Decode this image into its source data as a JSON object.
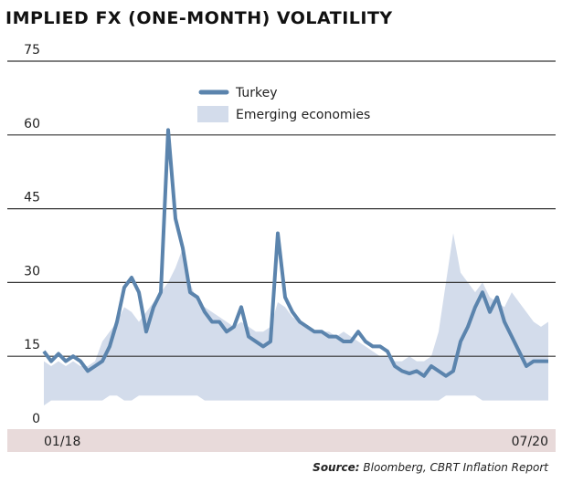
{
  "chart_data": {
    "type": "line",
    "title": "IMPLIED FX (ONE-MONTH) VOLATILITY",
    "source_label": "Source:",
    "source": "Bloomberg, CBRT Inflation Report",
    "categories": [
      "01/18",
      null,
      null,
      null,
      null,
      null,
      null,
      null,
      null,
      null,
      null,
      null,
      null,
      null,
      null,
      null,
      null,
      null,
      null,
      null,
      null,
      null,
      null,
      null,
      null,
      null,
      null,
      null,
      null,
      null,
      null,
      null,
      null,
      null,
      null,
      null,
      null,
      null,
      null,
      null,
      null,
      null,
      null,
      null,
      null,
      null,
      null,
      null,
      null,
      null,
      null,
      null,
      null,
      null,
      null,
      null,
      null,
      null,
      null,
      null,
      null,
      null,
      null,
      null,
      null,
      null,
      null,
      null,
      null,
      "07/20"
    ],
    "series": [
      {
        "name": "Turkey",
        "color": "#5b84ad",
        "values": [
          16,
          14,
          15.5,
          14,
          15,
          14,
          12,
          13,
          14,
          17,
          22,
          29,
          31,
          28,
          20,
          25,
          28,
          61,
          43,
          37,
          28,
          27,
          24,
          22,
          22,
          20,
          21,
          25,
          19,
          18,
          17,
          18,
          40,
          27,
          24,
          22,
          21,
          20,
          20,
          19,
          19,
          18,
          18,
          20,
          18,
          17,
          17,
          16,
          13,
          12,
          11.5,
          12,
          11,
          13,
          12,
          11,
          12,
          18,
          21,
          25,
          28,
          24,
          27,
          22,
          19,
          16,
          13,
          14,
          14,
          14
        ]
      },
      {
        "name": "Emerging economies",
        "color": "#d3dceb",
        "low": [
          5,
          6,
          6,
          6,
          6,
          6,
          6,
          6,
          6,
          7,
          7,
          6,
          6,
          7,
          7,
          7,
          7,
          7,
          7,
          7,
          7,
          7,
          6,
          6,
          6,
          6,
          6,
          6,
          6,
          6,
          6,
          6,
          6,
          6,
          6,
          6,
          6,
          6,
          6,
          6,
          6,
          6,
          6,
          6,
          6,
          6,
          6,
          6,
          6,
          6,
          6,
          6,
          6,
          6,
          6,
          7,
          7,
          7,
          7,
          7,
          6,
          6,
          6,
          6,
          6,
          6,
          6,
          6,
          6,
          6
        ],
        "high": [
          14,
          13,
          14,
          13,
          14,
          13,
          13,
          14,
          18,
          20,
          22,
          25,
          24,
          22,
          24,
          26,
          28,
          30,
          33,
          37,
          30,
          26,
          25,
          24,
          23,
          22,
          21,
          22,
          21,
          20,
          20,
          21,
          26,
          25,
          23,
          22,
          21,
          20,
          20,
          20,
          19,
          20,
          19,
          18,
          17,
          16,
          15,
          15,
          14,
          14,
          15,
          14,
          14,
          15,
          20,
          30,
          40,
          32,
          30,
          28,
          30,
          27,
          26,
          25,
          28,
          26,
          24,
          22,
          21,
          22
        ]
      }
    ],
    "ylim": [
      0,
      75
    ],
    "yticks": [
      0,
      15,
      30,
      45,
      60,
      75
    ],
    "grid": true
  }
}
